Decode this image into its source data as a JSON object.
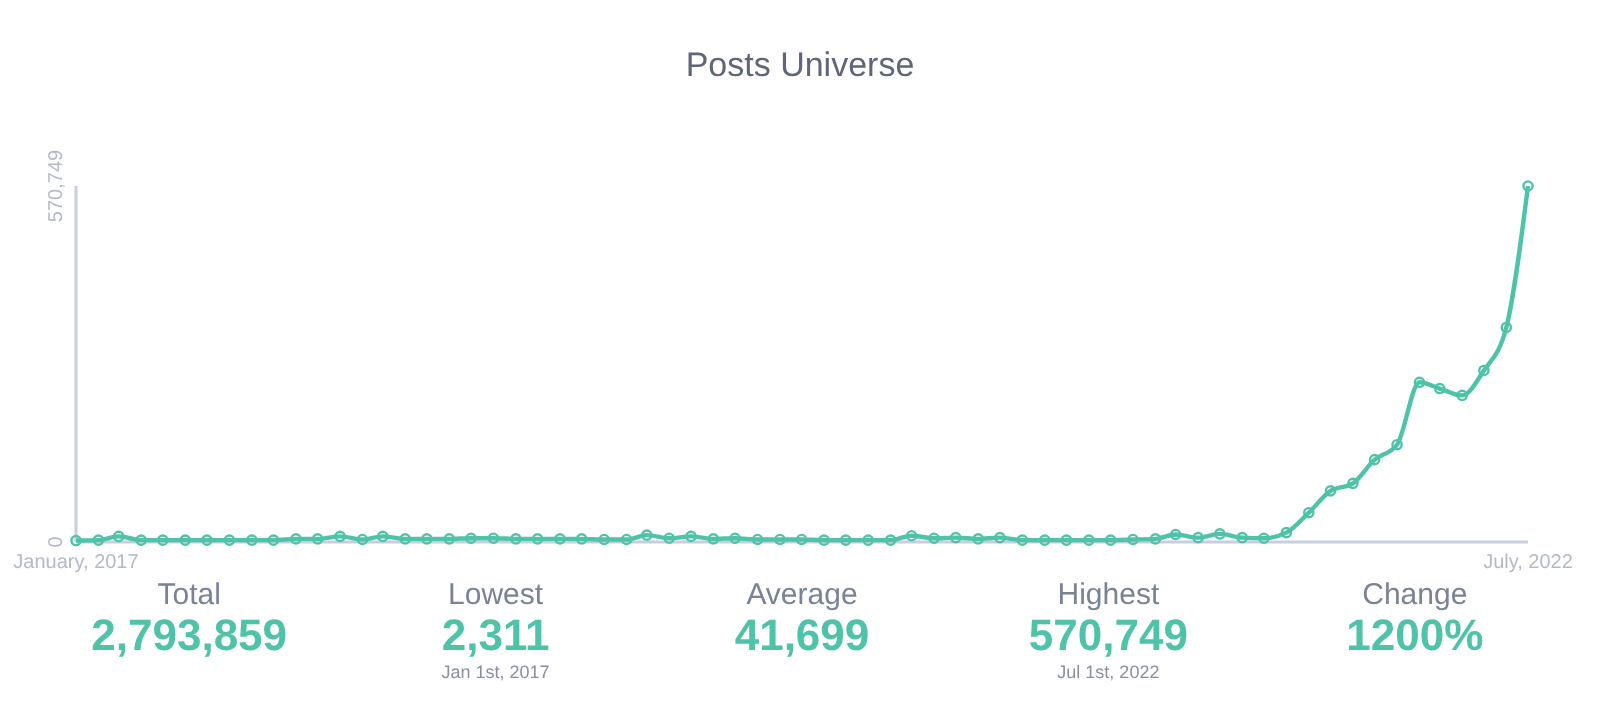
{
  "chart_data": {
    "type": "line",
    "title": "Posts Universe",
    "x": [
      "2017-01",
      "2017-02",
      "2017-03",
      "2017-04",
      "2017-05",
      "2017-06",
      "2017-07",
      "2017-08",
      "2017-09",
      "2017-10",
      "2017-11",
      "2017-12",
      "2018-01",
      "2018-02",
      "2018-03",
      "2018-04",
      "2018-05",
      "2018-06",
      "2018-07",
      "2018-08",
      "2018-09",
      "2018-10",
      "2018-11",
      "2018-12",
      "2019-01",
      "2019-02",
      "2019-03",
      "2019-04",
      "2019-05",
      "2019-06",
      "2019-07",
      "2019-08",
      "2019-09",
      "2019-10",
      "2019-11",
      "2019-12",
      "2020-01",
      "2020-02",
      "2020-03",
      "2020-04",
      "2020-05",
      "2020-06",
      "2020-07",
      "2020-08",
      "2020-09",
      "2020-10",
      "2020-11",
      "2020-12",
      "2021-01",
      "2021-02",
      "2021-03",
      "2021-04",
      "2021-05",
      "2021-06",
      "2021-07",
      "2021-08",
      "2021-09",
      "2021-10",
      "2021-11",
      "2021-12",
      "2022-01",
      "2022-02",
      "2022-03",
      "2022-04",
      "2022-05",
      "2022-06",
      "2022-07"
    ],
    "series": [
      {
        "color": "#4fc3a8",
        "values": [
          2311,
          3000,
          9000,
          3000,
          3000,
          3000,
          3000,
          3000,
          3000,
          3000,
          5000,
          5000,
          9000,
          4000,
          9000,
          5000,
          5000,
          5000,
          6000,
          6000,
          5000,
          5000,
          5000,
          5000,
          4000,
          4000,
          11000,
          6000,
          9000,
          5000,
          6000,
          4000,
          4000,
          4000,
          3000,
          3000,
          3000,
          3000,
          10000,
          6000,
          7000,
          5000,
          7000,
          3000,
          3000,
          3000,
          3000,
          3000,
          4000,
          5000,
          12000,
          7000,
          13000,
          7000,
          6000,
          15000,
          47000,
          82000,
          94000,
          132000,
          156000,
          256000,
          246000,
          235000,
          275000,
          344000,
          570749
        ]
      }
    ],
    "xlim": [
      "2017-01",
      "2022-07"
    ],
    "xticks": [
      {
        "value": "2017-01",
        "label": "January, 2017"
      },
      {
        "value": "2022-07",
        "label": "July, 2022"
      }
    ],
    "ylim": [
      0,
      570749
    ],
    "yticks": [
      0,
      {
        "value": 570749,
        "label": "570,749"
      }
    ],
    "grid": false,
    "marker": "circle",
    "line_style": "solid",
    "annotations": [
      "Total\n2,793,859",
      "Lowest\n2,311\nJan 1st, 2017",
      "Average\n41,699",
      "Highest\n570,749\nJul 1st, 2022",
      "Change\n1200%"
    ]
  }
}
